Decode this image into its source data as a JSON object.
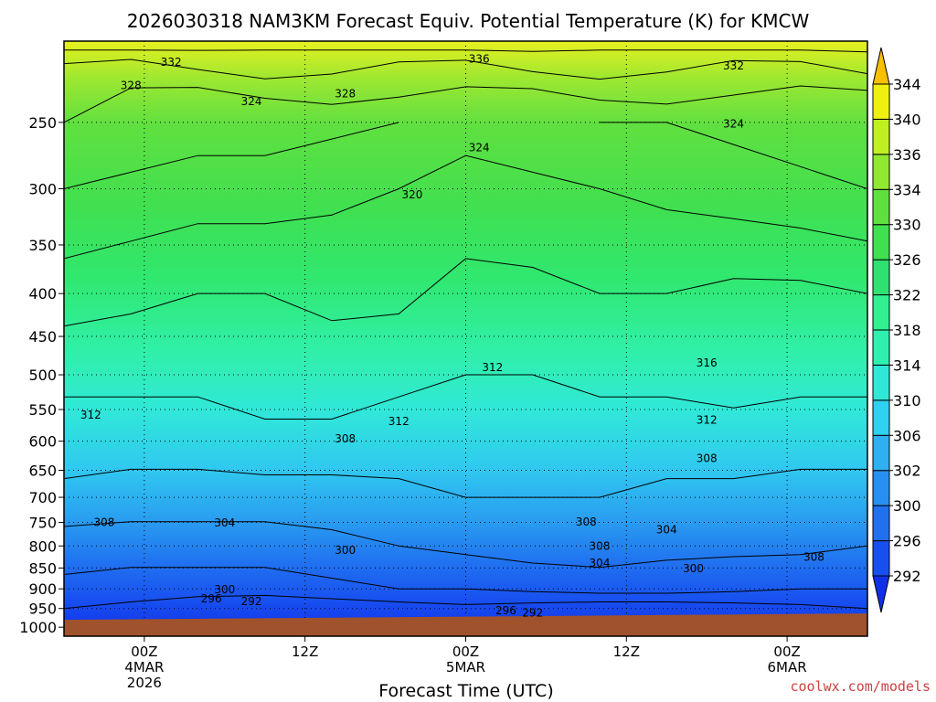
{
  "chart_data": {
    "type": "heatmap",
    "title": "2026030318 NAM3KM Forecast Equiv. Potential Temperature (K) for KMCW",
    "xlabel": "Forecast Time (UTC)",
    "ylabel": "",
    "x_ticks": [
      {
        "lines": [
          "00Z",
          "4MAR",
          "2026"
        ],
        "hour": 6
      },
      {
        "lines": [
          "12Z"
        ],
        "hour": 18
      },
      {
        "lines": [
          "00Z",
          "5MAR"
        ],
        "hour": 30
      },
      {
        "lines": [
          "12Z"
        ],
        "hour": 42
      },
      {
        "lines": [
          "00Z",
          "6MAR"
        ],
        "hour": 54
      }
    ],
    "xlim_hours": [
      0,
      60
    ],
    "y_ticks": [
      250,
      300,
      350,
      400,
      450,
      500,
      550,
      600,
      650,
      700,
      750,
      800,
      850,
      900,
      950,
      1000
    ],
    "ylim_hpa": [
      1025,
      200
    ],
    "y_scale": "log",
    "ground_level_hpa": 975,
    "colorbar": {
      "levels": [
        292,
        296,
        300,
        302,
        306,
        310,
        314,
        318,
        322,
        326,
        330,
        334,
        336,
        340,
        344
      ],
      "colors": [
        "#1030e8",
        "#1850f0",
        "#2070f0",
        "#2890f0",
        "#30b0f0",
        "#30d0f0",
        "#30e8d8",
        "#30f0b0",
        "#30f090",
        "#30e070",
        "#40e050",
        "#60e040",
        "#90e830",
        "#c0f020",
        "#f0f010",
        "#f8c000"
      ],
      "arrow_low_color": "#1030e8",
      "arrow_high_color": "#f8c000"
    },
    "series": [
      {
        "pressure_hpa": 250,
        "values": [
          328,
          327,
          326,
          326,
          325,
          324,
          322,
          323,
          324,
          324,
          325,
          326,
          327
        ]
      },
      {
        "pressure_hpa": 300,
        "values": [
          324,
          323,
          322,
          322,
          321,
          320,
          318,
          319,
          320,
          321,
          322,
          323,
          324
        ]
      },
      {
        "pressure_hpa": 400,
        "values": [
          318,
          317,
          316,
          316,
          317,
          317,
          315,
          315,
          316,
          316,
          315,
          315,
          316
        ]
      },
      {
        "pressure_hpa": 500,
        "values": [
          313,
          313,
          313,
          314,
          314,
          313,
          312,
          312,
          313,
          313,
          314,
          313,
          313
        ]
      },
      {
        "pressure_hpa": 600,
        "values": [
          310,
          310,
          310,
          311,
          311,
          310,
          310,
          309,
          310,
          310,
          310,
          310,
          310
        ]
      },
      {
        "pressure_hpa": 700,
        "values": [
          307,
          306,
          306,
          306,
          306,
          307,
          308,
          308,
          308,
          307,
          307,
          306,
          306
        ]
      },
      {
        "pressure_hpa": 800,
        "values": [
          302,
          302,
          302,
          302,
          303,
          304,
          305,
          306,
          306,
          305,
          305,
          305,
          304
        ]
      },
      {
        "pressure_hpa": 900,
        "values": [
          299,
          298,
          298,
          298,
          299,
          300,
          300,
          301,
          302,
          302,
          301,
          300,
          300
        ]
      },
      {
        "pressure_hpa": 950,
        "values": [
          296,
          295,
          293,
          292,
          293,
          294,
          295,
          294,
          293,
          293,
          294,
          295,
          296
        ]
      }
    ],
    "x_hours": [
      0,
      5,
      10,
      15,
      20,
      25,
      30,
      35,
      40,
      45,
      50,
      55,
      60
    ],
    "contour_labels": [
      {
        "text": "332",
        "hour": 8,
        "hpa": 212
      },
      {
        "text": "336",
        "hour": 31,
        "hpa": 210
      },
      {
        "text": "332",
        "hour": 50,
        "hpa": 214
      },
      {
        "text": "328",
        "hour": 5,
        "hpa": 226
      },
      {
        "text": "324",
        "hour": 14,
        "hpa": 236
      },
      {
        "text": "328",
        "hour": 21,
        "hpa": 231
      },
      {
        "text": "324",
        "hour": 50,
        "hpa": 251
      },
      {
        "text": "324",
        "hour": 31,
        "hpa": 268
      },
      {
        "text": "320",
        "hour": 26,
        "hpa": 305
      },
      {
        "text": "312",
        "hour": 2,
        "hpa": 558
      },
      {
        "text": "312",
        "hour": 32,
        "hpa": 490
      },
      {
        "text": "316",
        "hour": 48,
        "hpa": 484
      },
      {
        "text": "312",
        "hour": 25,
        "hpa": 568
      },
      {
        "text": "312",
        "hour": 48,
        "hpa": 566
      },
      {
        "text": "308",
        "hour": 21,
        "hpa": 596
      },
      {
        "text": "308",
        "hour": 48,
        "hpa": 629
      },
      {
        "text": "308",
        "hour": 3,
        "hpa": 750
      },
      {
        "text": "304",
        "hour": 12,
        "hpa": 751
      },
      {
        "text": "308",
        "hour": 39,
        "hpa": 749
      },
      {
        "text": "304",
        "hour": 45,
        "hpa": 765
      },
      {
        "text": "300",
        "hour": 21,
        "hpa": 810
      },
      {
        "text": "308",
        "hour": 40,
        "hpa": 800
      },
      {
        "text": "308",
        "hour": 56,
        "hpa": 825
      },
      {
        "text": "304",
        "hour": 40,
        "hpa": 838
      },
      {
        "text": "300",
        "hour": 47,
        "hpa": 851
      },
      {
        "text": "300",
        "hour": 12,
        "hpa": 902
      },
      {
        "text": "296",
        "hour": 11,
        "hpa": 925
      },
      {
        "text": "292",
        "hour": 14,
        "hpa": 932
      },
      {
        "text": "296",
        "hour": 33,
        "hpa": 955
      },
      {
        "text": "292",
        "hour": 35,
        "hpa": 961
      }
    ]
  },
  "credit": "coolwx.com/models",
  "colors": {
    "ground": "#a0522d",
    "frame": "#000000"
  }
}
